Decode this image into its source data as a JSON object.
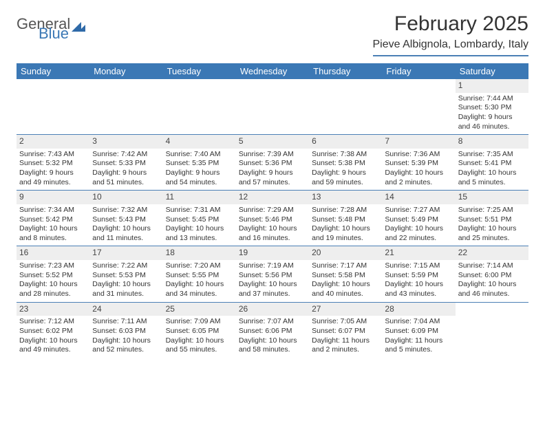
{
  "logo": {
    "part1": "General",
    "part2": "Blue"
  },
  "title": "February 2025",
  "subtitle": "Pieve Albignola, Lombardy, Italy",
  "dayNames": [
    "Sunday",
    "Monday",
    "Tuesday",
    "Wednesday",
    "Thursday",
    "Friday",
    "Saturday"
  ],
  "colors": {
    "headerBar": "#3b78b5",
    "ruleLine": "#4a7fb5",
    "dayNumBg": "#eeeeee",
    "text": "#333333",
    "logoBlue": "#2f6aa8"
  },
  "weeks": [
    [
      null,
      null,
      null,
      null,
      null,
      null,
      {
        "n": "1",
        "sunrise": "Sunrise: 7:44 AM",
        "sunset": "Sunset: 5:30 PM",
        "daylight": "Daylight: 9 hours and 46 minutes."
      }
    ],
    [
      {
        "n": "2",
        "sunrise": "Sunrise: 7:43 AM",
        "sunset": "Sunset: 5:32 PM",
        "daylight": "Daylight: 9 hours and 49 minutes."
      },
      {
        "n": "3",
        "sunrise": "Sunrise: 7:42 AM",
        "sunset": "Sunset: 5:33 PM",
        "daylight": "Daylight: 9 hours and 51 minutes."
      },
      {
        "n": "4",
        "sunrise": "Sunrise: 7:40 AM",
        "sunset": "Sunset: 5:35 PM",
        "daylight": "Daylight: 9 hours and 54 minutes."
      },
      {
        "n": "5",
        "sunrise": "Sunrise: 7:39 AM",
        "sunset": "Sunset: 5:36 PM",
        "daylight": "Daylight: 9 hours and 57 minutes."
      },
      {
        "n": "6",
        "sunrise": "Sunrise: 7:38 AM",
        "sunset": "Sunset: 5:38 PM",
        "daylight": "Daylight: 9 hours and 59 minutes."
      },
      {
        "n": "7",
        "sunrise": "Sunrise: 7:36 AM",
        "sunset": "Sunset: 5:39 PM",
        "daylight": "Daylight: 10 hours and 2 minutes."
      },
      {
        "n": "8",
        "sunrise": "Sunrise: 7:35 AM",
        "sunset": "Sunset: 5:41 PM",
        "daylight": "Daylight: 10 hours and 5 minutes."
      }
    ],
    [
      {
        "n": "9",
        "sunrise": "Sunrise: 7:34 AM",
        "sunset": "Sunset: 5:42 PM",
        "daylight": "Daylight: 10 hours and 8 minutes."
      },
      {
        "n": "10",
        "sunrise": "Sunrise: 7:32 AM",
        "sunset": "Sunset: 5:43 PM",
        "daylight": "Daylight: 10 hours and 11 minutes."
      },
      {
        "n": "11",
        "sunrise": "Sunrise: 7:31 AM",
        "sunset": "Sunset: 5:45 PM",
        "daylight": "Daylight: 10 hours and 13 minutes."
      },
      {
        "n": "12",
        "sunrise": "Sunrise: 7:29 AM",
        "sunset": "Sunset: 5:46 PM",
        "daylight": "Daylight: 10 hours and 16 minutes."
      },
      {
        "n": "13",
        "sunrise": "Sunrise: 7:28 AM",
        "sunset": "Sunset: 5:48 PM",
        "daylight": "Daylight: 10 hours and 19 minutes."
      },
      {
        "n": "14",
        "sunrise": "Sunrise: 7:27 AM",
        "sunset": "Sunset: 5:49 PM",
        "daylight": "Daylight: 10 hours and 22 minutes."
      },
      {
        "n": "15",
        "sunrise": "Sunrise: 7:25 AM",
        "sunset": "Sunset: 5:51 PM",
        "daylight": "Daylight: 10 hours and 25 minutes."
      }
    ],
    [
      {
        "n": "16",
        "sunrise": "Sunrise: 7:23 AM",
        "sunset": "Sunset: 5:52 PM",
        "daylight": "Daylight: 10 hours and 28 minutes."
      },
      {
        "n": "17",
        "sunrise": "Sunrise: 7:22 AM",
        "sunset": "Sunset: 5:53 PM",
        "daylight": "Daylight: 10 hours and 31 minutes."
      },
      {
        "n": "18",
        "sunrise": "Sunrise: 7:20 AM",
        "sunset": "Sunset: 5:55 PM",
        "daylight": "Daylight: 10 hours and 34 minutes."
      },
      {
        "n": "19",
        "sunrise": "Sunrise: 7:19 AM",
        "sunset": "Sunset: 5:56 PM",
        "daylight": "Daylight: 10 hours and 37 minutes."
      },
      {
        "n": "20",
        "sunrise": "Sunrise: 7:17 AM",
        "sunset": "Sunset: 5:58 PM",
        "daylight": "Daylight: 10 hours and 40 minutes."
      },
      {
        "n": "21",
        "sunrise": "Sunrise: 7:15 AM",
        "sunset": "Sunset: 5:59 PM",
        "daylight": "Daylight: 10 hours and 43 minutes."
      },
      {
        "n": "22",
        "sunrise": "Sunrise: 7:14 AM",
        "sunset": "Sunset: 6:00 PM",
        "daylight": "Daylight: 10 hours and 46 minutes."
      }
    ],
    [
      {
        "n": "23",
        "sunrise": "Sunrise: 7:12 AM",
        "sunset": "Sunset: 6:02 PM",
        "daylight": "Daylight: 10 hours and 49 minutes."
      },
      {
        "n": "24",
        "sunrise": "Sunrise: 7:11 AM",
        "sunset": "Sunset: 6:03 PM",
        "daylight": "Daylight: 10 hours and 52 minutes."
      },
      {
        "n": "25",
        "sunrise": "Sunrise: 7:09 AM",
        "sunset": "Sunset: 6:05 PM",
        "daylight": "Daylight: 10 hours and 55 minutes."
      },
      {
        "n": "26",
        "sunrise": "Sunrise: 7:07 AM",
        "sunset": "Sunset: 6:06 PM",
        "daylight": "Daylight: 10 hours and 58 minutes."
      },
      {
        "n": "27",
        "sunrise": "Sunrise: 7:05 AM",
        "sunset": "Sunset: 6:07 PM",
        "daylight": "Daylight: 11 hours and 2 minutes."
      },
      {
        "n": "28",
        "sunrise": "Sunrise: 7:04 AM",
        "sunset": "Sunset: 6:09 PM",
        "daylight": "Daylight: 11 hours and 5 minutes."
      },
      null
    ]
  ]
}
